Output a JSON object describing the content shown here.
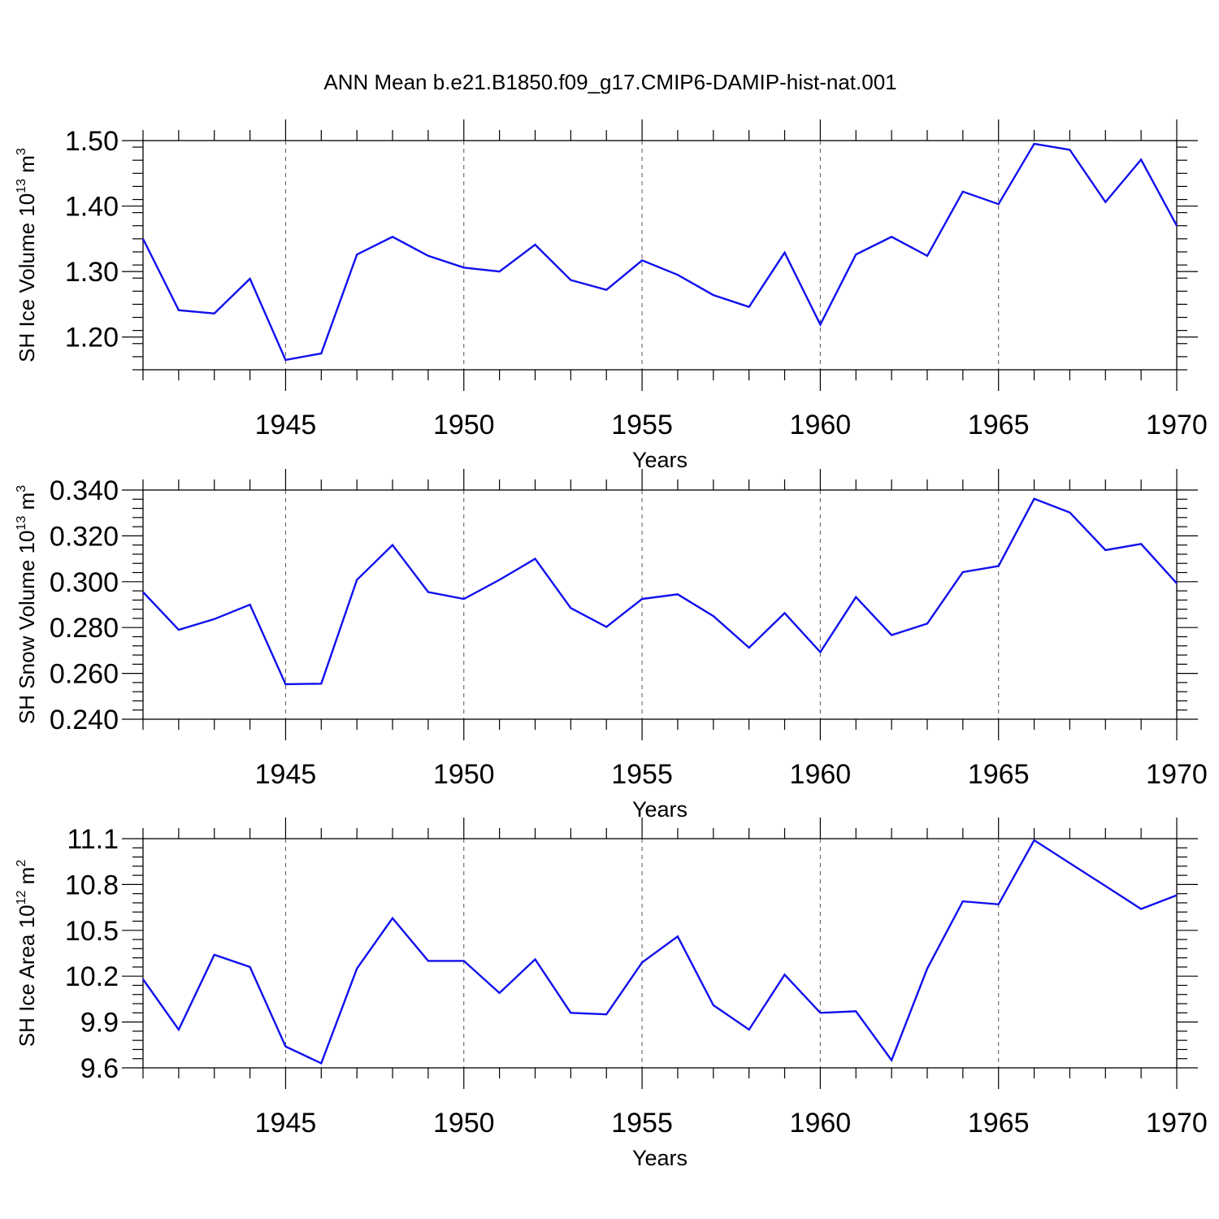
{
  "title": "ANN Mean b.e21.B1850.f09_g17.CMIP6-DAMIP-hist-nat.001",
  "colors": {
    "line": "#1010ee",
    "axis": "#000000",
    "grid": "#555555"
  },
  "chart_data": [
    {
      "type": "line",
      "ylabel": {
        "text": "SH Ice Volume 10",
        "exponent": "13",
        "unit": "m",
        "unit_exponent": "3"
      },
      "xlabel": "Years",
      "xlim": [
        1941,
        1970
      ],
      "ylim": [
        1.15,
        1.5
      ],
      "yticks": [
        1.2,
        1.3,
        1.4,
        1.5
      ],
      "ytick_labels": [
        "1.20",
        "1.30",
        "1.40",
        "1.50"
      ],
      "xticks": [
        1945,
        1950,
        1955,
        1960,
        1965,
        1970
      ],
      "xtick_labels": [
        "1945",
        "1950",
        "1955",
        "1960",
        "1965",
        "1970"
      ],
      "grid": "vertical dashed at major x ticks",
      "x": [
        1941,
        1942,
        1943,
        1944,
        1945,
        1946,
        1947,
        1948,
        1949,
        1950,
        1951,
        1952,
        1953,
        1954,
        1955,
        1956,
        1957,
        1958,
        1959,
        1960,
        1961,
        1962,
        1963,
        1964,
        1965,
        1966,
        1967,
        1968,
        1969,
        1970
      ],
      "series": [
        {
          "values": [
            1.35,
            1.241,
            1.236,
            1.289,
            1.165,
            1.175,
            1.326,
            1.353,
            1.324,
            1.306,
            1.3,
            1.341,
            1.287,
            1.272,
            1.317,
            1.295,
            1.264,
            1.246,
            1.329,
            1.219,
            1.326,
            1.353,
            1.324,
            1.422,
            1.403,
            1.495,
            1.486,
            1.406,
            1.471,
            1.37
          ]
        }
      ]
    },
    {
      "type": "line",
      "ylabel": {
        "text": "SH Snow Volume 10",
        "exponent": "13",
        "unit": "m",
        "unit_exponent": "3"
      },
      "xlabel": "Years",
      "xlim": [
        1941,
        1970
      ],
      "ylim": [
        0.24,
        0.34
      ],
      "yticks": [
        0.24,
        0.26,
        0.28,
        0.3,
        0.32,
        0.34
      ],
      "ytick_labels": [
        "0.240",
        "0.260",
        "0.280",
        "0.300",
        "0.320",
        "0.340"
      ],
      "xticks": [
        1945,
        1950,
        1955,
        1960,
        1965,
        1970
      ],
      "xtick_labels": [
        "1945",
        "1950",
        "1955",
        "1960",
        "1965",
        "1970"
      ],
      "grid": "vertical dashed at major x ticks",
      "x": [
        1941,
        1942,
        1943,
        1944,
        1945,
        1946,
        1947,
        1948,
        1949,
        1950,
        1951,
        1952,
        1953,
        1954,
        1955,
        1956,
        1957,
        1958,
        1959,
        1960,
        1961,
        1962,
        1963,
        1964,
        1965,
        1966,
        1967,
        1968,
        1969,
        1970
      ],
      "series": [
        {
          "values": [
            0.2955,
            0.279,
            0.2837,
            0.29,
            0.2553,
            0.2555,
            0.3008,
            0.316,
            0.2955,
            0.2925,
            0.3008,
            0.31,
            0.2885,
            0.2803,
            0.2925,
            0.2945,
            0.285,
            0.2712,
            0.2863,
            0.2693,
            0.2933,
            0.2767,
            0.2817,
            0.3042,
            0.3068,
            0.3362,
            0.3302,
            0.3138,
            0.3165,
            0.2993
          ]
        }
      ]
    },
    {
      "type": "line",
      "ylabel": {
        "text": "SH Ice Area 10",
        "exponent": "12",
        "unit": "m",
        "unit_exponent": "2"
      },
      "xlabel": "Years",
      "xlim": [
        1941,
        1970
      ],
      "ylim": [
        9.6,
        11.1
      ],
      "yticks": [
        9.6,
        9.9,
        10.2,
        10.5,
        10.8,
        11.1
      ],
      "ytick_labels": [
        "9.6",
        "9.9",
        "10.2",
        "10.5",
        "10.8",
        "11.1"
      ],
      "xticks": [
        1945,
        1950,
        1955,
        1960,
        1965,
        1970
      ],
      "xtick_labels": [
        "1945",
        "1950",
        "1955",
        "1960",
        "1965",
        "1970"
      ],
      "grid": "vertical dashed at major x ticks",
      "x": [
        1941,
        1942,
        1943,
        1944,
        1945,
        1946,
        1947,
        1948,
        1949,
        1950,
        1951,
        1952,
        1953,
        1954,
        1955,
        1956,
        1957,
        1958,
        1959,
        1960,
        1961,
        1962,
        1963,
        1964,
        1965,
        1966,
        1967,
        1968,
        1969,
        1970
      ],
      "series": [
        {
          "values": [
            10.18,
            9.85,
            10.34,
            10.26,
            9.74,
            9.63,
            10.25,
            10.58,
            10.3,
            10.3,
            10.09,
            10.31,
            9.96,
            9.95,
            10.29,
            10.46,
            10.01,
            9.85,
            10.21,
            9.96,
            9.97,
            9.65,
            10.25,
            10.69,
            10.67,
            11.09,
            10.94,
            10.79,
            10.64,
            10.73
          ]
        }
      ]
    }
  ]
}
